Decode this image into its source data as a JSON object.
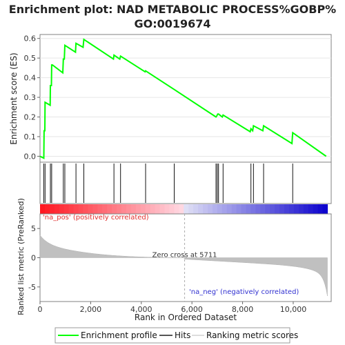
{
  "title_line1": "Enrichment plot: NAD METABOLIC PROCESS%GOBP%",
  "title_line2": "GO:0019674",
  "chart_data": {
    "type": "line",
    "top_panel": {
      "ylabel": "Enrichment score (ES)",
      "ylim": [
        -0.03,
        0.62
      ],
      "yticks": [
        "0.0",
        "0.1",
        "0.2",
        "0.3",
        "0.4",
        "0.5",
        "0.6"
      ],
      "series": {
        "name": "Enrichment profile",
        "color": "#00ff00",
        "x": [
          0,
          150,
          160,
          190,
          200,
          400,
          410,
          450,
          460,
          480,
          490,
          900,
          920,
          960,
          980,
          1400,
          1420,
          1700,
          1730,
          2900,
          2920,
          3150,
          3180,
          4150,
          4170,
          5300,
          6950,
          6980,
          7020,
          7050,
          7200,
          7230,
          8300,
          8330,
          8400,
          8430,
          8800,
          8830,
          9950,
          9980,
          11300
        ],
        "y": [
          0.0,
          -0.01,
          0.13,
          0.13,
          0.275,
          0.26,
          0.36,
          0.36,
          0.465,
          0.465,
          0.465,
          0.425,
          0.495,
          0.495,
          0.565,
          0.53,
          0.575,
          0.555,
          0.595,
          0.495,
          0.515,
          0.495,
          0.51,
          0.43,
          0.435,
          0.34,
          0.2,
          0.205,
          0.215,
          0.215,
          0.2,
          0.21,
          0.125,
          0.14,
          0.13,
          0.155,
          0.13,
          0.155,
          0.065,
          0.12,
          0.0
        ]
      }
    },
    "hits": [
      150,
      200,
      410,
      460,
      920,
      980,
      1420,
      1730,
      2920,
      3180,
      4170,
      5300,
      6950,
      7000,
      7050,
      7230,
      8330,
      8430,
      8830,
      9980
    ],
    "bottom_panel": {
      "ylabel": "Ranked list metric (PreRanked)",
      "ylim": [
        -7.5,
        7.5
      ],
      "yticks": [
        "5",
        "0",
        "-5"
      ],
      "series_name": "Ranking metric scores",
      "zero_cross_label": "Zero cross at 5711",
      "zero_cross": 5711,
      "pos_label": "'na_pos' (positively correlated)",
      "neg_label": "'na_neg' (negatively correlated)"
    },
    "xlabel": "Rank in Ordered Dataset",
    "xlim": [
      0,
      11500
    ],
    "xticks": [
      "0",
      "2,000",
      "4,000",
      "6,000",
      "8,000",
      "10,000"
    ],
    "total_ranks": 11350
  },
  "legend": {
    "items": [
      {
        "label": "Enrichment profile",
        "color": "#00ff00"
      },
      {
        "label": "Hits",
        "color": "#000000"
      },
      {
        "label": "Ranking metric scores",
        "color": "#cccccc"
      }
    ]
  }
}
